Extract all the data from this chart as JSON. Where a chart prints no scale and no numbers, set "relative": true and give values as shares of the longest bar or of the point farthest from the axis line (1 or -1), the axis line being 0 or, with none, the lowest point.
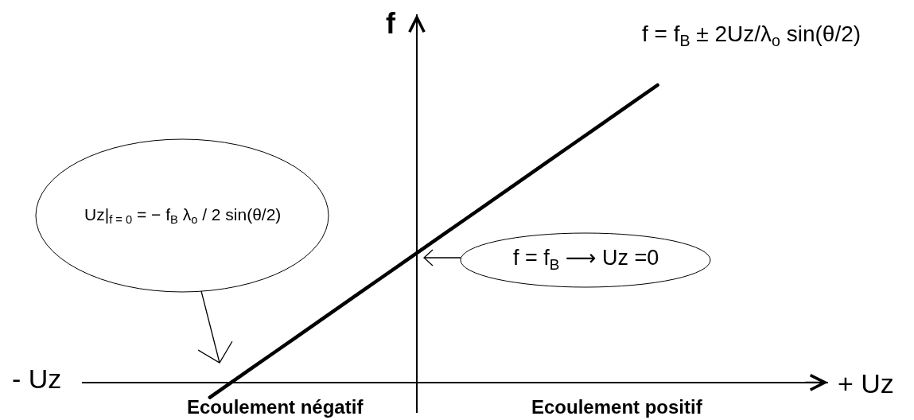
{
  "chart_data": {
    "type": "line",
    "relative": true,
    "xlabel": "+ Uz",
    "ylabel": "f",
    "color": "#000000",
    "categories": [
      null,
      null,
      null,
      null,
      null,
      null,
      null,
      null,
      null,
      null,
      null,
      null,
      null,
      null,
      null,
      null,
      null,
      null,
      null,
      null,
      null,
      null,
      null,
      null,
      null,
      null,
      null,
      null,
      null,
      null,
      null,
      null,
      null,
      null,
      null,
      null
    ],
    "values": [
      null,
      null,
      null,
      null,
      null,
      null,
      -0.05,
      0,
      0.05,
      0.1,
      0.15,
      0.2,
      0.25,
      0.3,
      0.35,
      0.4,
      0.45,
      0.5,
      0.55,
      0.6,
      0.65,
      0.7,
      0.75,
      0.8,
      0.85,
      0.9,
      0.95,
      1,
      null,
      null,
      null,
      null,
      null,
      null,
      null,
      null
    ],
    "annotations": [
      "Uz|$_{f = 0}$ = − f$_{B}$ λ$_{o}$ / 2 sin(θ/2)",
      "f = f$_{B}$ ⟶ Uz =0",
      "f = f$_{B}$ ± 2Uz/λ$_{o}$ sin(θ/2)",
      "- Uz",
      "Ecoulement négatif",
      "Ecoulement positif"
    ]
  }
}
